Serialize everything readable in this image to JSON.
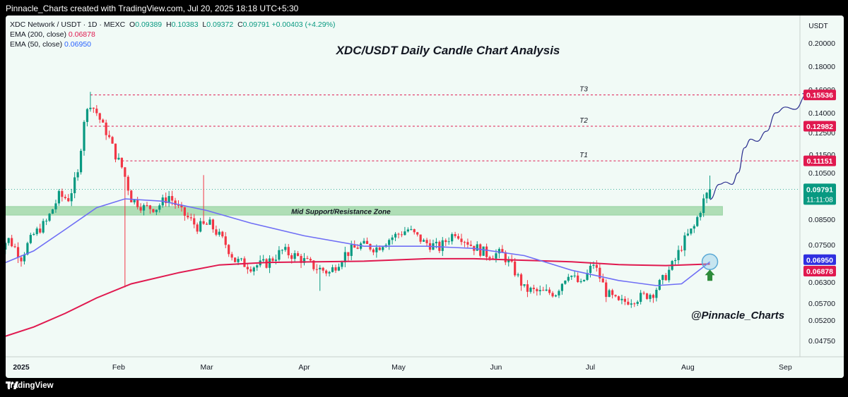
{
  "header": {
    "text": "Pinnacle_Charts created with TradingView.com, Jul 20, 2025 18:18 UTC+5:30"
  },
  "legend": {
    "symbol": "XDC Network / USDT · 1D · MEXC",
    "o_label": "O",
    "o": "0.09389",
    "h_label": "H",
    "h": "0.10383",
    "l_label": "L",
    "l": "0.09372",
    "c_label": "C",
    "c": "0.09791",
    "change": "+0.00403 (+4.29%)",
    "ema200_label": "EMA (200, close)",
    "ema200": "0.06878",
    "ema50_label": "EMA (50, close)",
    "ema50": "0.06950"
  },
  "footer": {
    "brand": "TradingView"
  },
  "colors": {
    "up": "#089981",
    "down": "#f23645",
    "ema200": "#e0194f",
    "ema50": "#6f6ef5",
    "zone": "#a8dcb0",
    "target": "#e0194f",
    "last": "#089981"
  },
  "chart_data": {
    "type": "candlestick",
    "title": "XDC/USDT Daily Candle Chart Analysis",
    "watermark": "@Pinnacle_Charts",
    "y_axis_label": "USDT",
    "y_ticks": [
      {
        "v": 0.2,
        "label": "0.20000"
      },
      {
        "v": 0.18,
        "label": "0.18000"
      },
      {
        "v": 0.16,
        "label": "0.16000"
      },
      {
        "v": 0.14,
        "label": "0.14000"
      },
      {
        "v": 0.125,
        "label": "0.12500"
      },
      {
        "v": 0.115,
        "label": "0.11500"
      },
      {
        "v": 0.105,
        "label": "0.10500"
      },
      {
        "v": 0.085,
        "label": "0.08500"
      },
      {
        "v": 0.075,
        "label": "0.07500"
      },
      {
        "v": 0.063,
        "label": "0.06300"
      },
      {
        "v": 0.057,
        "label": "0.05700"
      },
      {
        "v": 0.052,
        "label": "0.05200"
      },
      {
        "v": 0.0475,
        "label": "0.04750"
      }
    ],
    "x_ticks": [
      {
        "date": "2025-01-01",
        "label": "2025",
        "bold": true
      },
      {
        "date": "2025-02-01",
        "label": "Feb"
      },
      {
        "date": "2025-03-01",
        "label": "Mar"
      },
      {
        "date": "2025-04-01",
        "label": "Apr"
      },
      {
        "date": "2025-05-01",
        "label": "May"
      },
      {
        "date": "2025-06-01",
        "label": "Jun"
      },
      {
        "date": "2025-07-01",
        "label": "Jul"
      },
      {
        "date": "2025-08-01",
        "label": "Aug"
      },
      {
        "date": "2025-09-01",
        "label": "Sep"
      }
    ],
    "targets": [
      {
        "name": "T3",
        "value": 0.15536,
        "label": "0.15536"
      },
      {
        "name": "T2",
        "value": 0.12982,
        "label": "0.12982"
      },
      {
        "name": "T1",
        "value": 0.11151,
        "label": "0.11151"
      }
    ],
    "zone": {
      "label": "Mid Support/Resistance Zone",
      "low": 0.0868,
      "high": 0.0905
    },
    "last_price": {
      "value": 0.09791,
      "label": "0.09791",
      "countdown": "11:11:08"
    },
    "ema_labels": [
      {
        "value": 0.0695,
        "label": "0.06950",
        "series": "EMA 50"
      },
      {
        "value": 0.06878,
        "label": "0.06878",
        "series": "EMA 200"
      }
    ],
    "anchors": [
      [
        "2024-12-24",
        0.073
      ],
      [
        "2024-12-28",
        0.077
      ],
      [
        "2025-01-01",
        0.071
      ],
      [
        "2025-01-05",
        0.079
      ],
      [
        "2025-01-09",
        0.084
      ],
      [
        "2025-01-13",
        0.095
      ],
      [
        "2025-01-16",
        0.094
      ],
      [
        "2025-01-19",
        0.104
      ],
      [
        "2025-01-21",
        0.135
      ],
      [
        "2025-01-23",
        0.148
      ],
      [
        "2025-01-25",
        0.14
      ],
      [
        "2025-01-27",
        0.13
      ],
      [
        "2025-01-30",
        0.118
      ],
      [
        "2025-02-02",
        0.108
      ],
      [
        "2025-02-05",
        0.094
      ],
      [
        "2025-02-09",
        0.09
      ],
      [
        "2025-02-13",
        0.09
      ],
      [
        "2025-02-17",
        0.095
      ],
      [
        "2025-02-21",
        0.088
      ],
      [
        "2025-02-26",
        0.082
      ],
      [
        "2025-03-02",
        0.083
      ],
      [
        "2025-03-06",
        0.077
      ],
      [
        "2025-03-10",
        0.07
      ],
      [
        "2025-03-15",
        0.068
      ],
      [
        "2025-03-20",
        0.069
      ],
      [
        "2025-03-25",
        0.073
      ],
      [
        "2025-03-30",
        0.071
      ],
      [
        "2025-04-04",
        0.068
      ],
      [
        "2025-04-09",
        0.066
      ],
      [
        "2025-04-14",
        0.072
      ],
      [
        "2025-04-19",
        0.075
      ],
      [
        "2025-04-24",
        0.074
      ],
      [
        "2025-04-29",
        0.078
      ],
      [
        "2025-05-04",
        0.081
      ],
      [
        "2025-05-09",
        0.076
      ],
      [
        "2025-05-14",
        0.074
      ],
      [
        "2025-05-19",
        0.08
      ],
      [
        "2025-05-24",
        0.075
      ],
      [
        "2025-05-29",
        0.072
      ],
      [
        "2025-06-03",
        0.072
      ],
      [
        "2025-06-06",
        0.068
      ],
      [
        "2025-06-10",
        0.061
      ],
      [
        "2025-06-15",
        0.06
      ],
      [
        "2025-06-20",
        0.06
      ],
      [
        "2025-06-24",
        0.066
      ],
      [
        "2025-06-28",
        0.062
      ],
      [
        "2025-07-02",
        0.069
      ],
      [
        "2025-07-06",
        0.06
      ],
      [
        "2025-07-10",
        0.057
      ],
      [
        "2025-07-14",
        0.058
      ],
      [
        "2025-07-18",
        0.059
      ],
      [
        "2025-07-21",
        0.06
      ],
      [
        "2025-07-25",
        0.065
      ],
      [
        "2025-07-28",
        0.07
      ],
      [
        "2025-07-31",
        0.077
      ],
      [
        "2025-08-03",
        0.082
      ],
      [
        "2025-08-06",
        0.093
      ],
      [
        "2025-08-08",
        0.098
      ]
    ],
    "ema200_points": [
      [
        "2024-12-24",
        0.0478
      ],
      [
        "2025-01-05",
        0.0505
      ],
      [
        "2025-01-15",
        0.054
      ],
      [
        "2025-01-25",
        0.0585
      ],
      [
        "2025-02-05",
        0.0625
      ],
      [
        "2025-02-20",
        0.066
      ],
      [
        "2025-03-05",
        0.0685
      ],
      [
        "2025-03-20",
        0.0693
      ],
      [
        "2025-04-05",
        0.0695
      ],
      [
        "2025-04-20",
        0.0697
      ],
      [
        "2025-05-10",
        0.0705
      ],
      [
        "2025-05-25",
        0.0705
      ],
      [
        "2025-06-10",
        0.07
      ],
      [
        "2025-06-25",
        0.0695
      ],
      [
        "2025-07-10",
        0.0686
      ],
      [
        "2025-07-25",
        0.0683
      ],
      [
        "2025-08-08",
        0.0688
      ]
    ],
    "ema50_points": [
      [
        "2024-12-24",
        0.068
      ],
      [
        "2025-01-05",
        0.073
      ],
      [
        "2025-01-15",
        0.081
      ],
      [
        "2025-01-25",
        0.09
      ],
      [
        "2025-02-03",
        0.0938
      ],
      [
        "2025-02-15",
        0.0928
      ],
      [
        "2025-03-01",
        0.0888
      ],
      [
        "2025-03-15",
        0.0835
      ],
      [
        "2025-04-01",
        0.0785
      ],
      [
        "2025-04-20",
        0.0745
      ],
      [
        "2025-05-10",
        0.0745
      ],
      [
        "2025-05-25",
        0.0738
      ],
      [
        "2025-06-10",
        0.0715
      ],
      [
        "2025-06-25",
        0.0668
      ],
      [
        "2025-07-10",
        0.0635
      ],
      [
        "2025-07-22",
        0.062
      ],
      [
        "2025-07-30",
        0.0625
      ],
      [
        "2025-08-08",
        0.0695
      ]
    ],
    "projection": [
      [
        "2025-08-08",
        0.0935
      ],
      [
        "2025-08-11",
        0.1
      ],
      [
        "2025-08-13",
        0.101
      ],
      [
        "2025-08-15",
        0.1
      ],
      [
        "2025-08-17",
        0.105
      ],
      [
        "2025-08-19",
        0.118
      ],
      [
        "2025-08-21",
        0.122
      ],
      [
        "2025-08-23",
        0.121
      ],
      [
        "2025-08-26",
        0.126
      ],
      [
        "2025-08-29",
        0.14
      ],
      [
        "2025-09-01",
        0.145
      ],
      [
        "2025-09-04",
        0.143
      ],
      [
        "2025-09-08",
        0.156
      ]
    ]
  }
}
